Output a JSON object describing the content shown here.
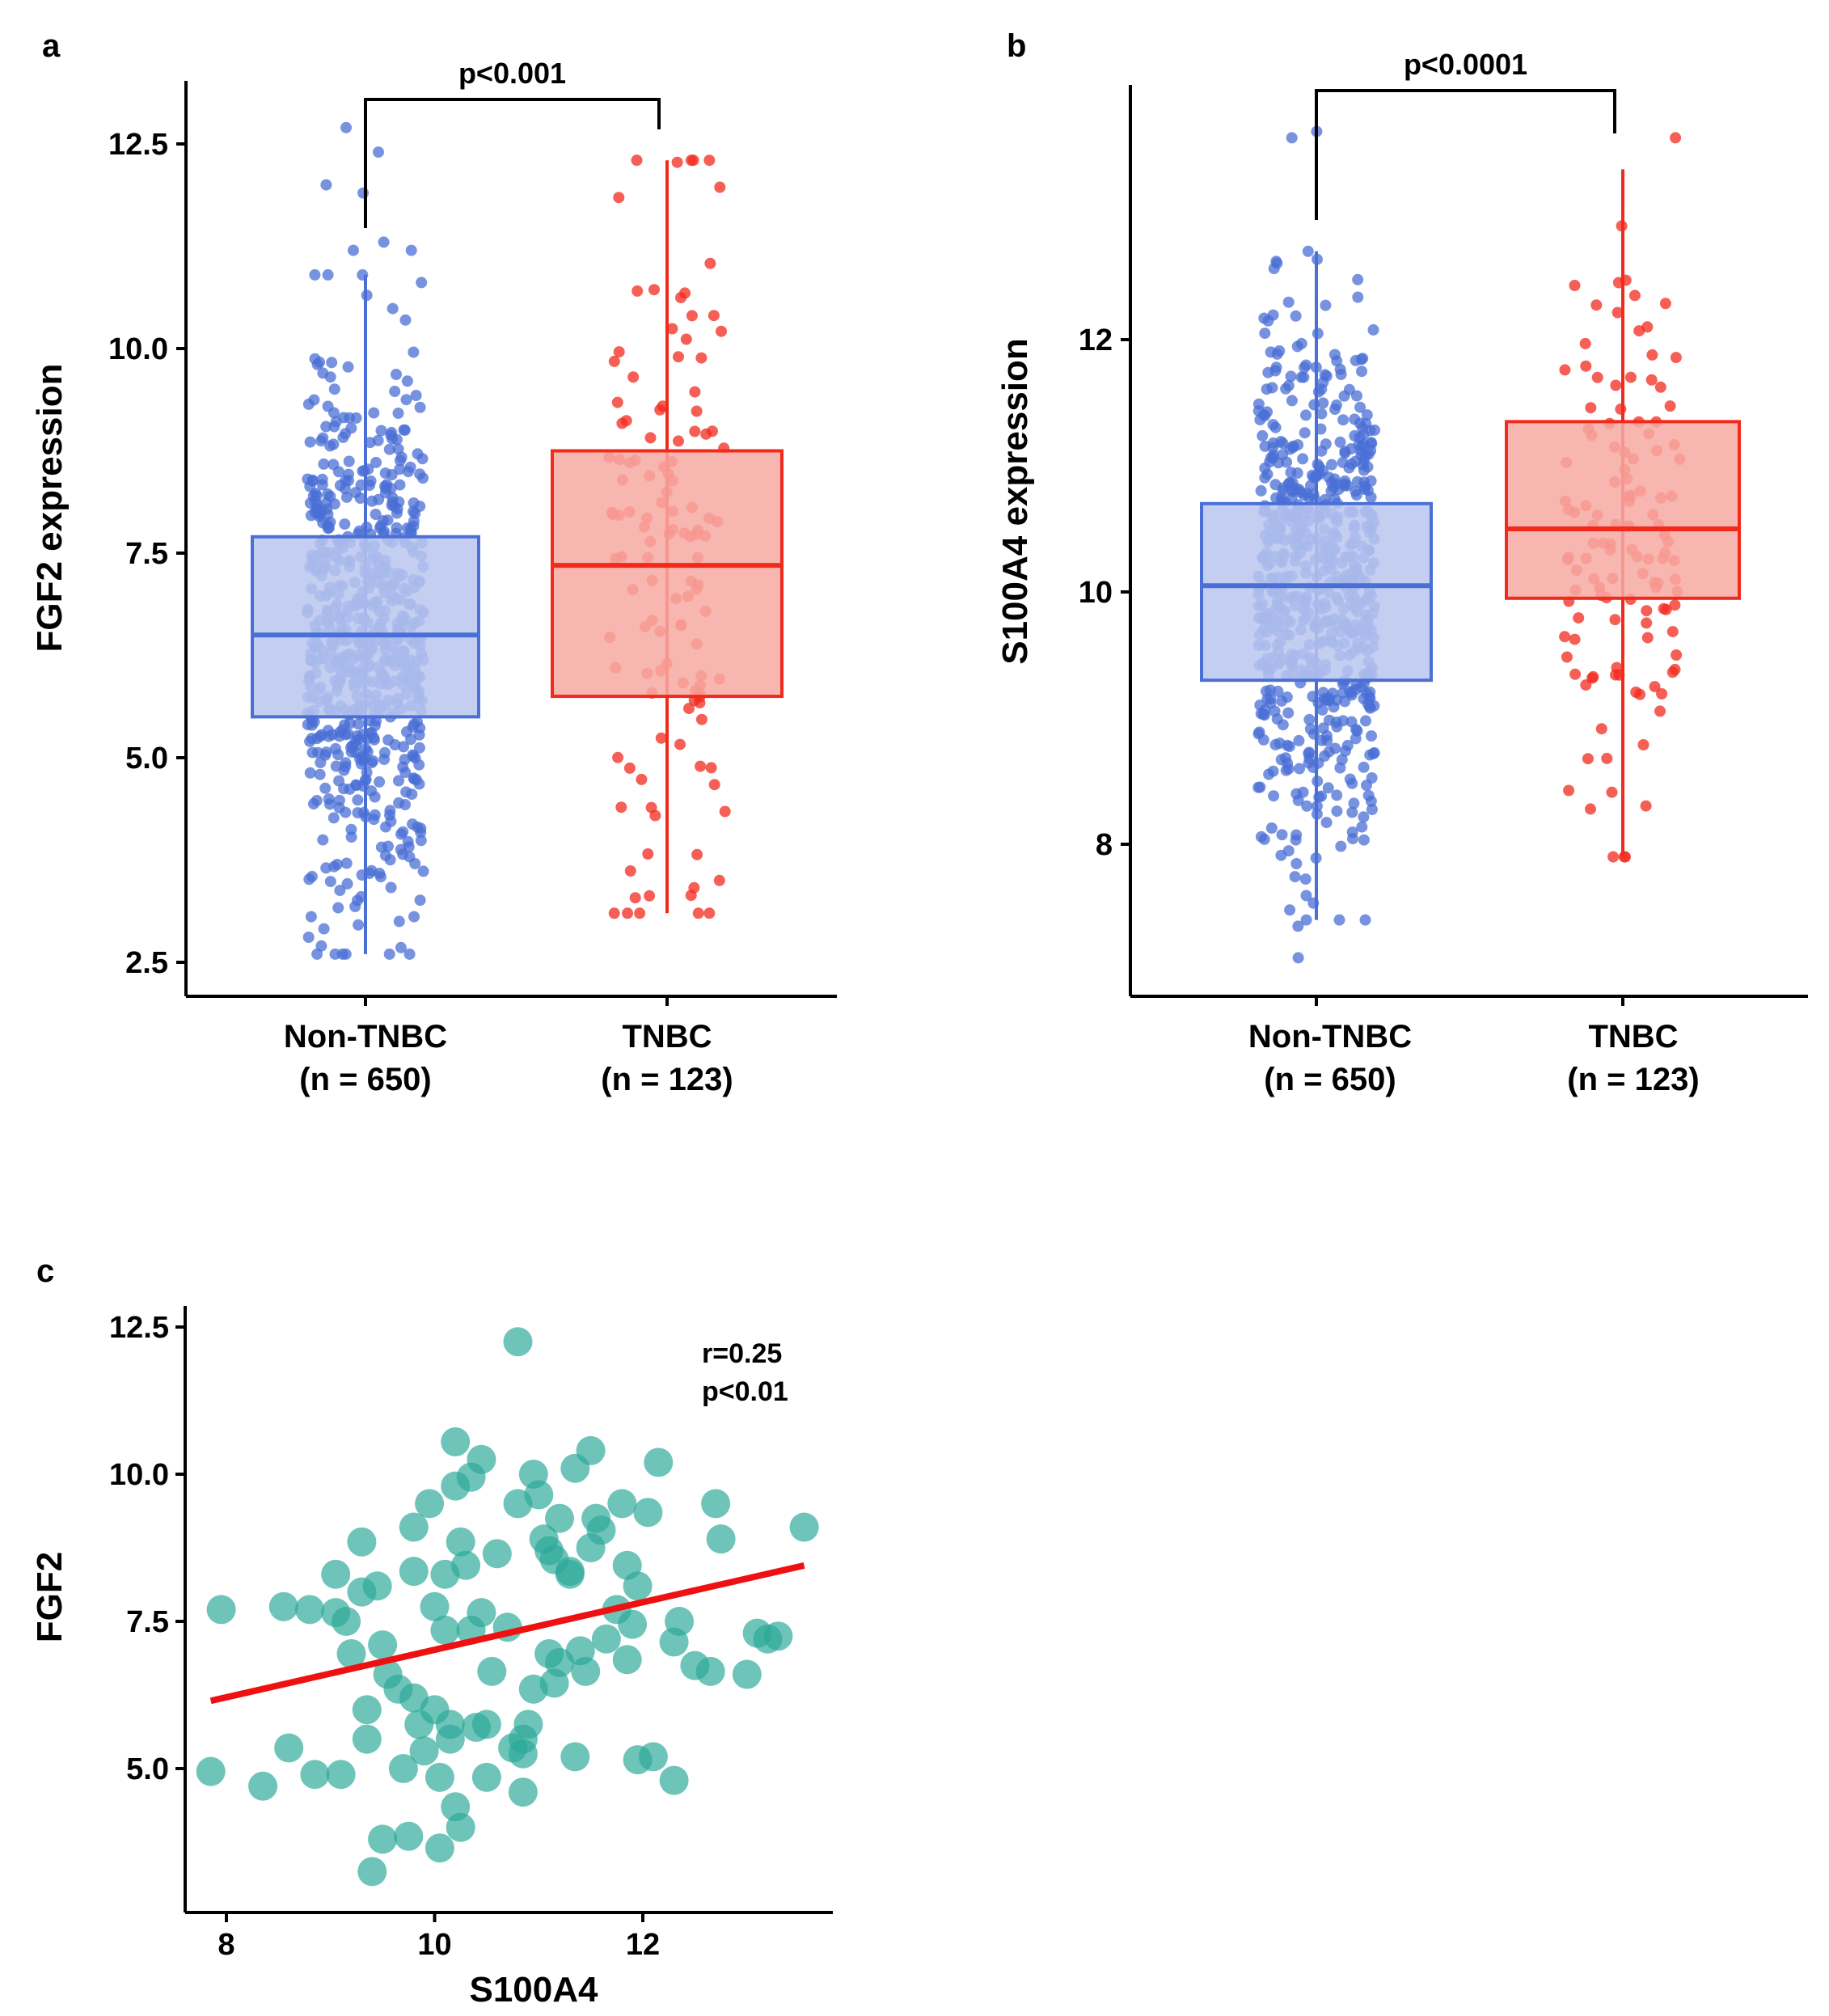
{
  "colors": {
    "non_tnbc_point": "#4a6fd6",
    "non_tnbc_box_fill": "#b8c5ee",
    "non_tnbc_box_stroke": "#4a6fd6",
    "tnbc_point": "#f22a1c",
    "tnbc_box_fill": "#f7a9a3",
    "tnbc_box_stroke": "#f22a1c",
    "scatter_point": "#2ba898",
    "fit_line": "#ee1111",
    "axis": "#000000"
  },
  "chart_data": [
    {
      "panel": "a",
      "type": "box",
      "ylabel": "FGF2 expression",
      "yticks": [
        2.5,
        5.0,
        7.5,
        10.0,
        12.5
      ],
      "ytick_labels": [
        "2.5",
        "5.0",
        "7.5",
        "10.0",
        "12.5"
      ],
      "ylim": [
        2.2,
        13.2
      ],
      "significance": "p<0.001",
      "groups": [
        {
          "name": "Non-TNBC",
          "n_label": "(n = 650)",
          "n": 650,
          "whisker_low": 2.6,
          "q1": 5.5,
          "median": 6.5,
          "q3": 7.7,
          "whisker_high": 10.9,
          "outliers": [
            12.7,
            12.4,
            12.0,
            11.9,
            11.3,
            11.2,
            11.2,
            2.6,
            2.7,
            3.0
          ]
        },
        {
          "name": "TNBC",
          "n_label": "(n = 123)",
          "n": 123,
          "whisker_low": 3.1,
          "q1": 5.75,
          "median": 7.35,
          "q3": 8.75,
          "whisker_high": 12.3,
          "outliers": [
            12.3,
            3.1
          ]
        }
      ]
    },
    {
      "panel": "b",
      "type": "box",
      "ylabel": "S100A4 expression",
      "yticks": [
        8,
        10,
        12
      ],
      "ytick_labels": [
        "8",
        "10",
        "12"
      ],
      "ylim": [
        6.8,
        14.0
      ],
      "significance": "p<0.0001",
      "groups": [
        {
          "name": "Non-TNBC",
          "n_label": "(n = 650)",
          "n": 650,
          "whisker_low": 7.4,
          "q1": 9.3,
          "median": 10.05,
          "q3": 10.7,
          "whisker_high": 12.7,
          "outliers": [
            13.6,
            13.65,
            7.1,
            7.35
          ]
        },
        {
          "name": "TNBC",
          "n_label": "(n = 123)",
          "n": 123,
          "whisker_low": 7.9,
          "q1": 9.95,
          "median": 10.5,
          "q3": 11.35,
          "whisker_high": 13.35,
          "outliers": [
            13.6,
            7.9
          ]
        }
      ]
    },
    {
      "panel": "c",
      "type": "scatter",
      "xlabel": "S100A4",
      "ylabel": "FGF2",
      "xticks": [
        8,
        10,
        12
      ],
      "xtick_labels": [
        "8",
        "10",
        "12"
      ],
      "yticks": [
        5.0,
        7.5,
        10.0,
        12.5
      ],
      "ytick_labels": [
        "5.0",
        "7.5",
        "10.0",
        "12.5"
      ],
      "xlim": [
        7.6,
        13.8
      ],
      "ylim": [
        2.8,
        12.7
      ],
      "stat_r": "r=0.25",
      "stat_p": "p<0.01",
      "fit_line": {
        "x": [
          7.85,
          13.55
        ],
        "y": [
          6.15,
          8.45
        ]
      },
      "points": [
        [
          7.85,
          4.95
        ],
        [
          7.95,
          7.7
        ],
        [
          8.35,
          4.7
        ],
        [
          8.55,
          7.75
        ],
        [
          8.6,
          5.35
        ],
        [
          8.8,
          7.7
        ],
        [
          8.85,
          4.9
        ],
        [
          9.05,
          8.3
        ],
        [
          9.05,
          7.65
        ],
        [
          9.1,
          4.9
        ],
        [
          9.15,
          7.5
        ],
        [
          9.2,
          6.95
        ],
        [
          9.3,
          8.85
        ],
        [
          9.3,
          8.0
        ],
        [
          9.35,
          6.0
        ],
        [
          9.35,
          5.5
        ],
        [
          9.4,
          3.25
        ],
        [
          9.45,
          8.1
        ],
        [
          9.5,
          7.1
        ],
        [
          9.5,
          3.8
        ],
        [
          9.55,
          6.6
        ],
        [
          9.65,
          6.35
        ],
        [
          9.7,
          5.0
        ],
        [
          9.75,
          3.85
        ],
        [
          9.8,
          9.1
        ],
        [
          9.8,
          8.35
        ],
        [
          9.8,
          6.2
        ],
        [
          9.85,
          5.75
        ],
        [
          9.9,
          5.3
        ],
        [
          9.95,
          9.5
        ],
        [
          10.0,
          7.75
        ],
        [
          10.0,
          6.0
        ],
        [
          10.05,
          3.65
        ],
        [
          10.05,
          4.85
        ],
        [
          10.1,
          8.3
        ],
        [
          10.1,
          7.35
        ],
        [
          10.15,
          5.5
        ],
        [
          10.15,
          5.75
        ],
        [
          10.2,
          10.55
        ],
        [
          10.2,
          9.8
        ],
        [
          10.2,
          4.35
        ],
        [
          10.25,
          4.0
        ],
        [
          10.25,
          8.85
        ],
        [
          10.3,
          8.45
        ],
        [
          10.35,
          9.95
        ],
        [
          10.35,
          7.35
        ],
        [
          10.4,
          5.7
        ],
        [
          10.45,
          10.25
        ],
        [
          10.45,
          7.65
        ],
        [
          10.5,
          5.75
        ],
        [
          10.5,
          4.85
        ],
        [
          10.55,
          6.65
        ],
        [
          10.6,
          8.65
        ],
        [
          10.7,
          7.4
        ],
        [
          10.75,
          5.35
        ],
        [
          10.8,
          9.5
        ],
        [
          10.8,
          12.25
        ],
        [
          10.85,
          5.5
        ],
        [
          10.85,
          5.25
        ],
        [
          10.85,
          4.6
        ],
        [
          10.9,
          5.75
        ],
        [
          10.95,
          10.0
        ],
        [
          10.95,
          6.35
        ],
        [
          11.0,
          9.65
        ],
        [
          11.05,
          8.9
        ],
        [
          11.1,
          8.7
        ],
        [
          11.1,
          6.95
        ],
        [
          11.15,
          8.55
        ],
        [
          11.15,
          6.45
        ],
        [
          11.2,
          6.8
        ],
        [
          11.2,
          9.25
        ],
        [
          11.3,
          8.35
        ],
        [
          11.3,
          8.3
        ],
        [
          11.35,
          10.1
        ],
        [
          11.35,
          5.2
        ],
        [
          11.4,
          7.0
        ],
        [
          11.45,
          6.65
        ],
        [
          11.5,
          10.4
        ],
        [
          11.5,
          8.75
        ],
        [
          11.55,
          9.25
        ],
        [
          11.6,
          9.05
        ],
        [
          11.65,
          7.2
        ],
        [
          11.75,
          7.7
        ],
        [
          11.8,
          9.5
        ],
        [
          11.85,
          8.45
        ],
        [
          11.85,
          6.85
        ],
        [
          11.9,
          7.45
        ],
        [
          11.95,
          5.15
        ],
        [
          11.95,
          8.1
        ],
        [
          12.05,
          9.35
        ],
        [
          12.1,
          5.2
        ],
        [
          12.15,
          10.2
        ],
        [
          12.3,
          4.8
        ],
        [
          12.3,
          7.15
        ],
        [
          12.35,
          7.5
        ],
        [
          12.5,
          6.75
        ],
        [
          12.65,
          6.65
        ],
        [
          12.7,
          9.5
        ],
        [
          12.75,
          8.9
        ],
        [
          13.0,
          6.6
        ],
        [
          13.1,
          7.3
        ],
        [
          13.2,
          7.2
        ],
        [
          13.3,
          7.25
        ],
        [
          13.55,
          9.1
        ]
      ]
    }
  ],
  "group_labels": {
    "non_tnbc": "Non-TNBC",
    "tnbc": "TNBC"
  }
}
